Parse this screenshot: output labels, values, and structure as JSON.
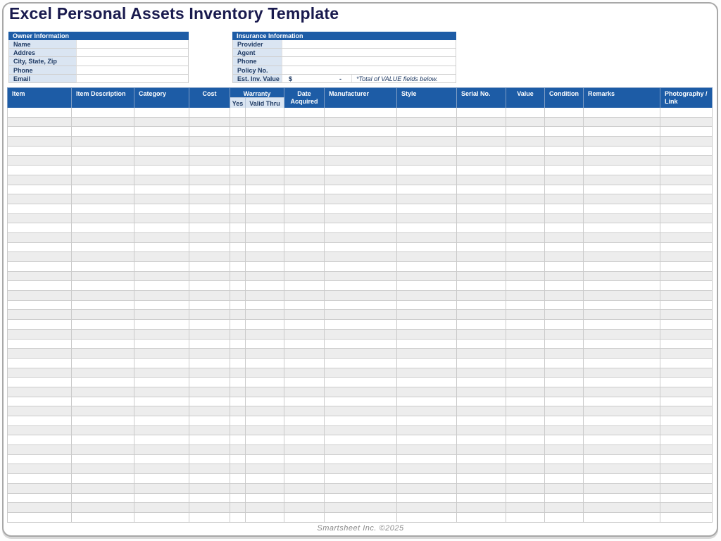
{
  "page": {
    "title": "Excel Personal Assets Inventory Template",
    "footer": "Smartsheet Inc. ©2025"
  },
  "owner_info": {
    "header": "Owner Information",
    "fields": [
      {
        "label": "Name",
        "value": ""
      },
      {
        "label": "Addres",
        "value": ""
      },
      {
        "label": "City, State, Zip",
        "value": ""
      },
      {
        "label": "Phone",
        "value": ""
      },
      {
        "label": "Email",
        "value": ""
      }
    ]
  },
  "insurance_info": {
    "header": "Insurance Information",
    "fields": [
      {
        "label": "Provider",
        "value": ""
      },
      {
        "label": "Agent",
        "value": ""
      },
      {
        "label": "Phone",
        "value": ""
      },
      {
        "label": "Policy No.",
        "value": ""
      }
    ],
    "est_inv_value": {
      "label": "Est. Inv. Value",
      "currency_symbol": "$",
      "amount": "-",
      "note": "*Total of VALUE fields below."
    }
  },
  "inventory_table": {
    "columns": [
      "Item",
      "Item Description",
      "Category",
      "Cost",
      "Date Acquired",
      "Manufacturer",
      "Style",
      "Serial No.",
      "Value",
      "Condition",
      "Remarks",
      "Photography / Link"
    ],
    "warranty_group": {
      "label": "Warranty",
      "sub_columns": [
        "Yes",
        "Valid Thru"
      ]
    },
    "row_count": 43,
    "rows": []
  },
  "colors": {
    "header_blue": "#1D5CA6",
    "label_blue": "#DAE5F2",
    "title_navy": "#191A4E",
    "label_navy": "#1F3A63",
    "row_alt_gray": "#EDEDED",
    "grid_line": "#CBCBCB"
  }
}
